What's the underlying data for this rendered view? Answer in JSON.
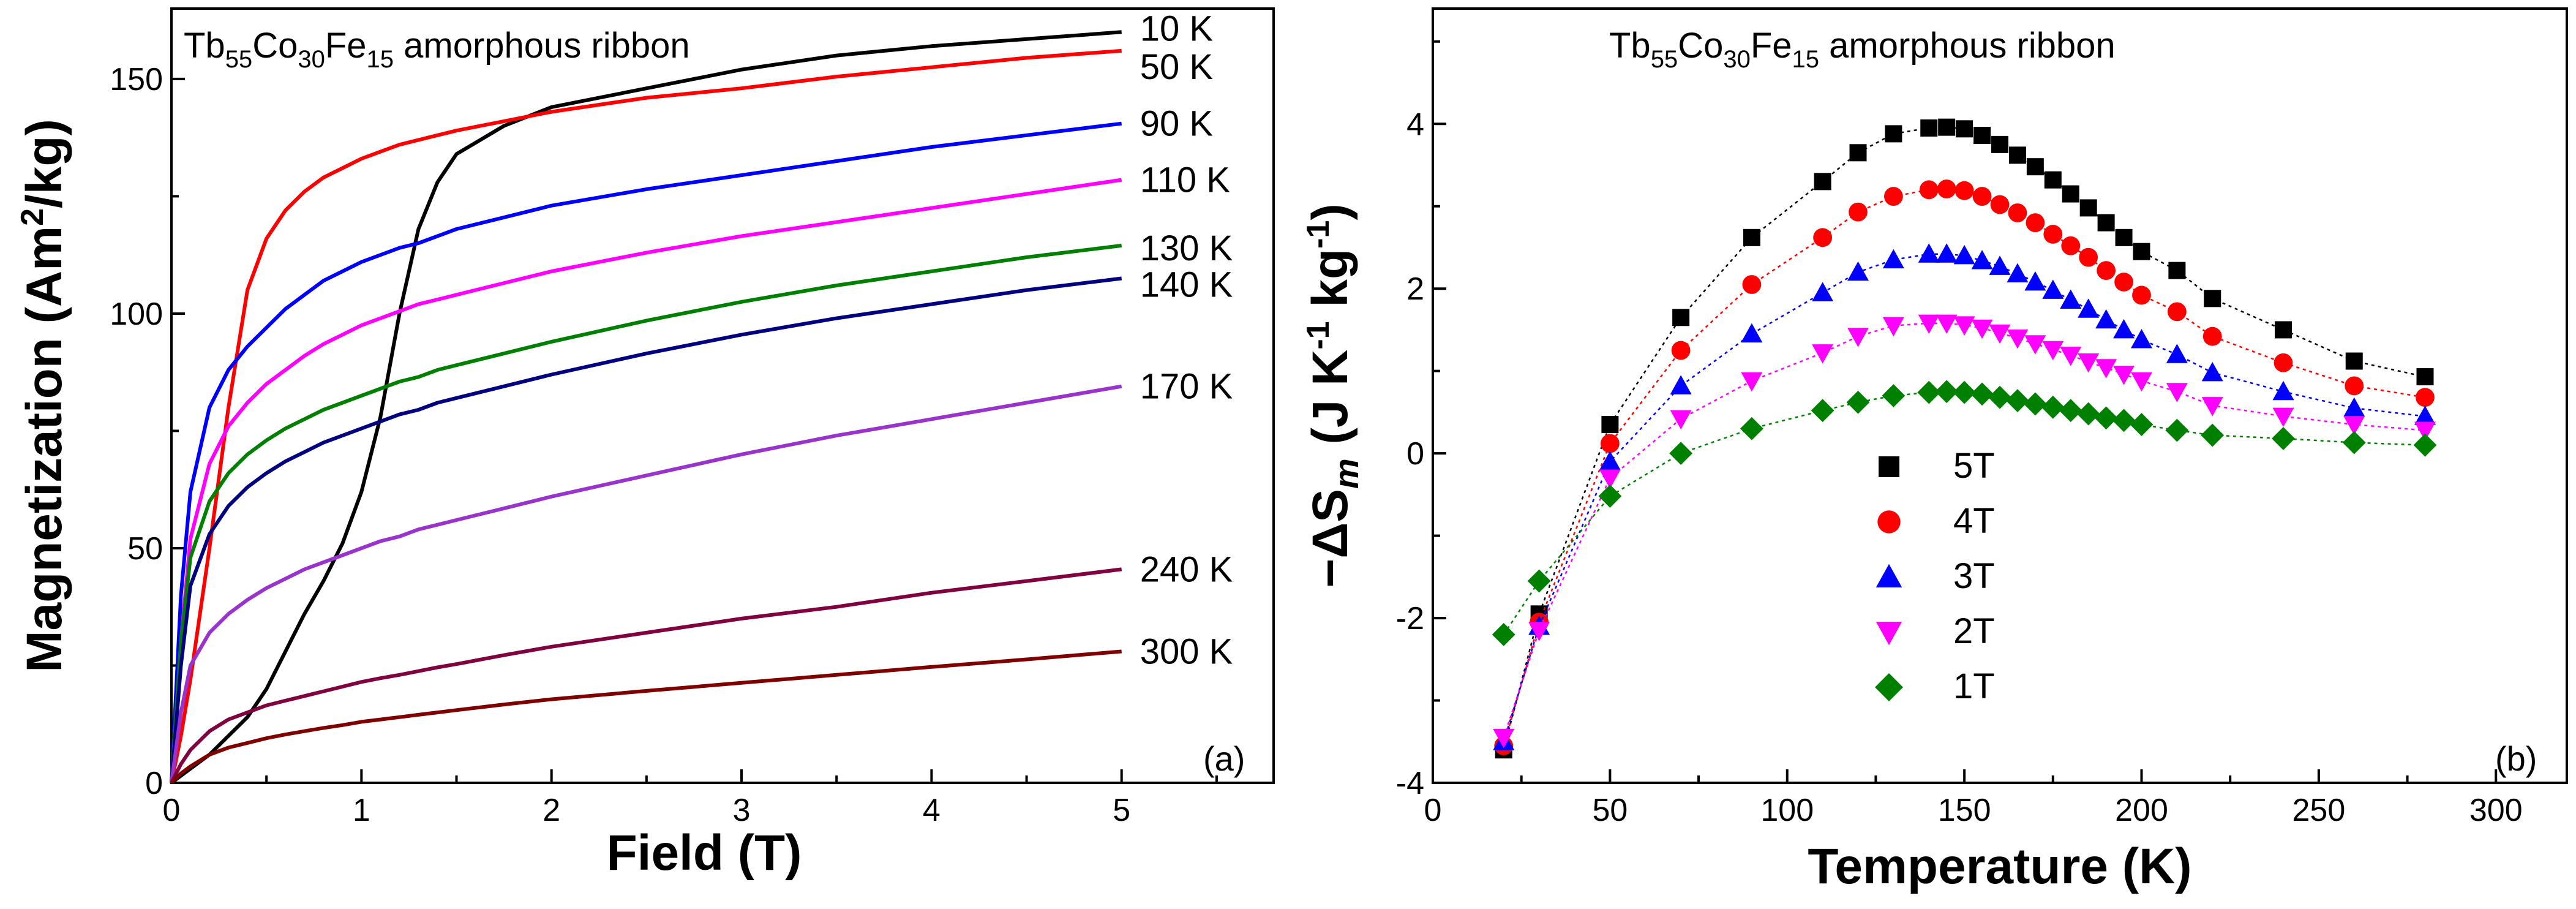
{
  "panel_a": {
    "title": {
      "base1": "Tb",
      "sub1": "55",
      "base2": "Co",
      "sub2": "30",
      "base3": "Fe",
      "sub3": "15",
      "rest": " amorphous ribbon"
    },
    "xlabel": "Field (T)",
    "ylabel_pre": "Magnetization (Am",
    "ylabel_sup": "2",
    "ylabel_post": "/kg)",
    "panel_label": "(a)"
  },
  "panel_b": {
    "title": {
      "base1": "Tb",
      "sub1": "55",
      "base2": "Co",
      "sub2": "30",
      "base3": "Fe",
      "sub3": "15",
      "rest": " amorphous ribbon"
    },
    "xlabel": "Temperature (K)",
    "ylabel_parts": [
      "−ΔS",
      "m",
      " (J K",
      "-1",
      " kg",
      "-1",
      ")"
    ],
    "panel_label": "(b)"
  },
  "chart_data": [
    {
      "type": "line",
      "title": "Tb55Co30Fe15 amorphous ribbon",
      "xlabel": "Field (T)",
      "ylabel": "Magnetization (Am2/kg)",
      "xlim": [
        0,
        5.8
      ],
      "ylim": [
        0,
        165
      ],
      "xticks": [
        0,
        1,
        2,
        3,
        4,
        5
      ],
      "yticks": [
        0,
        50,
        100,
        150
      ],
      "x": [
        0,
        0.05,
        0.1,
        0.2,
        0.3,
        0.4,
        0.5,
        0.6,
        0.7,
        0.8,
        0.9,
        1.0,
        1.1,
        1.2,
        1.3,
        1.4,
        1.5,
        1.75,
        2.0,
        2.5,
        3.0,
        3.5,
        4.0,
        4.5,
        5.0
      ],
      "series": [
        {
          "name": "10 K",
          "color": "#000000",
          "values": [
            0,
            1.5,
            3,
            6,
            10,
            14,
            20,
            28,
            36,
            43,
            51,
            62,
            78,
            100,
            118,
            128,
            134,
            140,
            144,
            148,
            152,
            155,
            157,
            158.5,
            160
          ]
        },
        {
          "name": "50 K",
          "color": "#ff0000",
          "values": [
            0,
            10,
            22,
            50,
            80,
            105,
            116,
            122,
            126,
            129,
            131,
            133,
            134.5,
            136,
            137,
            138,
            139,
            141,
            143,
            146,
            148,
            150.5,
            152.5,
            154.5,
            156
          ]
        },
        {
          "name": "90 K",
          "color": "#0000ff",
          "values": [
            0,
            40,
            62,
            80,
            88,
            93,
            97,
            101,
            104,
            107,
            109,
            111,
            112.5,
            114,
            115,
            116.5,
            118,
            120.5,
            123,
            126.5,
            129.5,
            132.5,
            135.5,
            138,
            140.5
          ]
        },
        {
          "name": "110 K",
          "color": "#ff00ff",
          "values": [
            0,
            30,
            52,
            68,
            76,
            81,
            85,
            88,
            91,
            93.5,
            95.5,
            97.5,
            99,
            100.5,
            102,
            103,
            104,
            106.5,
            109,
            113,
            116.5,
            119.5,
            122.5,
            125.5,
            128.5
          ]
        },
        {
          "name": "130 K",
          "color": "#008000",
          "values": [
            0,
            30,
            48,
            60,
            66,
            70,
            73,
            75.5,
            77.5,
            79.5,
            81,
            82.5,
            84,
            85.5,
            86.5,
            88,
            89,
            91.5,
            94,
            98.5,
            102.5,
            106,
            109,
            112,
            114.5
          ]
        },
        {
          "name": "140 K",
          "color": "#000080",
          "values": [
            0,
            25,
            42,
            53,
            59,
            63,
            66,
            68.5,
            70.5,
            72.5,
            74,
            75.5,
            77,
            78.5,
            79.5,
            81,
            82,
            84.5,
            87,
            91.5,
            95.5,
            99,
            102,
            105,
            107.5
          ]
        },
        {
          "name": "170 K",
          "color": "#9933cc",
          "values": [
            0,
            15,
            25,
            32,
            36,
            39,
            41.5,
            43.5,
            45.5,
            47,
            48.5,
            50,
            51.5,
            52.5,
            54,
            55,
            56,
            58.5,
            61,
            65.5,
            70,
            74,
            77.5,
            81,
            84.5
          ]
        },
        {
          "name": "240 K",
          "color": "#800040",
          "values": [
            0,
            4,
            7,
            11,
            13.5,
            15,
            16.5,
            17.5,
            18.5,
            19.5,
            20.5,
            21.5,
            22.3,
            23,
            23.8,
            24.6,
            25.3,
            27.2,
            29,
            32,
            35,
            37.5,
            40.5,
            43,
            45.5
          ]
        },
        {
          "name": "300 K",
          "color": "#800000",
          "values": [
            0,
            2,
            3.5,
            6,
            7.5,
            8.5,
            9.5,
            10.3,
            11,
            11.7,
            12.3,
            13,
            13.5,
            14,
            14.5,
            15,
            15.5,
            16.7,
            17.8,
            19.6,
            21.3,
            23,
            24.7,
            26.3,
            28
          ]
        }
      ]
    },
    {
      "type": "scatter",
      "title": "Tb55Co30Fe15 amorphous ribbon",
      "xlabel": "Temperature (K)",
      "ylabel": "−ΔSm (J K-1 kg-1)",
      "xlim": [
        0,
        320
      ],
      "ylim": [
        -4,
        5.4
      ],
      "xticks": [
        0,
        50,
        100,
        150,
        200,
        250,
        300
      ],
      "yticks": [
        -4,
        -2,
        0,
        2,
        4
      ],
      "x": [
        20,
        30,
        50,
        70,
        90,
        110,
        120,
        130,
        140,
        145,
        150,
        155,
        160,
        165,
        170,
        175,
        180,
        185,
        190,
        195,
        200,
        210,
        220,
        240,
        260,
        280
      ],
      "legend_position": "center",
      "series": [
        {
          "name": "5T",
          "color": "#000000",
          "marker": "square",
          "values": [
            -3.6,
            -1.95,
            0.35,
            1.65,
            2.62,
            3.3,
            3.65,
            3.88,
            3.95,
            3.96,
            3.94,
            3.86,
            3.75,
            3.62,
            3.48,
            3.32,
            3.15,
            2.98,
            2.8,
            2.62,
            2.45,
            2.22,
            1.88,
            1.5,
            1.12,
            0.93
          ]
        },
        {
          "name": "4T",
          "color": "#ff0000",
          "marker": "circle",
          "values": [
            -3.55,
            -2.05,
            0.12,
            1.25,
            2.05,
            2.62,
            2.93,
            3.12,
            3.2,
            3.21,
            3.19,
            3.12,
            3.02,
            2.92,
            2.8,
            2.66,
            2.52,
            2.38,
            2.22,
            2.08,
            1.92,
            1.72,
            1.42,
            1.1,
            0.82,
            0.68
          ]
        },
        {
          "name": "3T",
          "color": "#0000ff",
          "marker": "triangle-up",
          "values": [
            -3.5,
            -2.1,
            -0.1,
            0.82,
            1.45,
            1.95,
            2.2,
            2.35,
            2.42,
            2.42,
            2.4,
            2.34,
            2.27,
            2.18,
            2.08,
            1.98,
            1.86,
            1.75,
            1.62,
            1.5,
            1.38,
            1.2,
            0.98,
            0.75,
            0.55,
            0.45
          ]
        },
        {
          "name": "2T",
          "color": "#ff00ff",
          "marker": "triangle-down",
          "values": [
            -3.45,
            -2.15,
            -0.3,
            0.42,
            0.88,
            1.22,
            1.42,
            1.55,
            1.58,
            1.58,
            1.56,
            1.52,
            1.46,
            1.4,
            1.33,
            1.26,
            1.19,
            1.11,
            1.04,
            0.96,
            0.88,
            0.75,
            0.58,
            0.45,
            0.35,
            0.28
          ]
        },
        {
          "name": "1T",
          "color": "#008000",
          "marker": "diamond",
          "values": [
            -2.2,
            -1.55,
            -0.52,
            0.0,
            0.3,
            0.52,
            0.62,
            0.7,
            0.74,
            0.75,
            0.74,
            0.72,
            0.68,
            0.64,
            0.6,
            0.56,
            0.52,
            0.48,
            0.43,
            0.4,
            0.35,
            0.28,
            0.22,
            0.18,
            0.13,
            0.1
          ]
        }
      ]
    }
  ]
}
